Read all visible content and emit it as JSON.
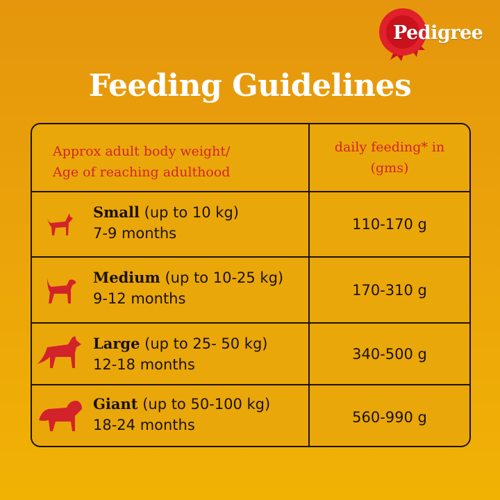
{
  "brand": {
    "logo_text": "Pedigree",
    "accent": "#d2232a"
  },
  "title": "Feeding Guidelines",
  "table": {
    "header": {
      "col1_line1": "Approx adult body weight/",
      "col1_line2": "Age of reaching adulthood",
      "col2_line1": "daily feeding* in",
      "col2_line2": "(gms)"
    },
    "rows": [
      {
        "icon": "small-dog-icon",
        "size": "Small",
        "range": "(up to 10 kg)",
        "age": "7-9 months",
        "amount": "110-170 g"
      },
      {
        "icon": "medium-dog-icon",
        "size": "Medium",
        "range": "(up to 10-25 kg)",
        "age": "9-12 months",
        "amount": "170-310 g"
      },
      {
        "icon": "large-dog-icon",
        "size": "Large",
        "range": "(up to 25- 50 kg)",
        "age": "12-18 months",
        "amount": "340-500 g"
      },
      {
        "icon": "giant-dog-icon",
        "size": "Giant",
        "range": "(up to 50-100 kg)",
        "age": "18-24 months",
        "amount": "560-990 g"
      }
    ]
  }
}
